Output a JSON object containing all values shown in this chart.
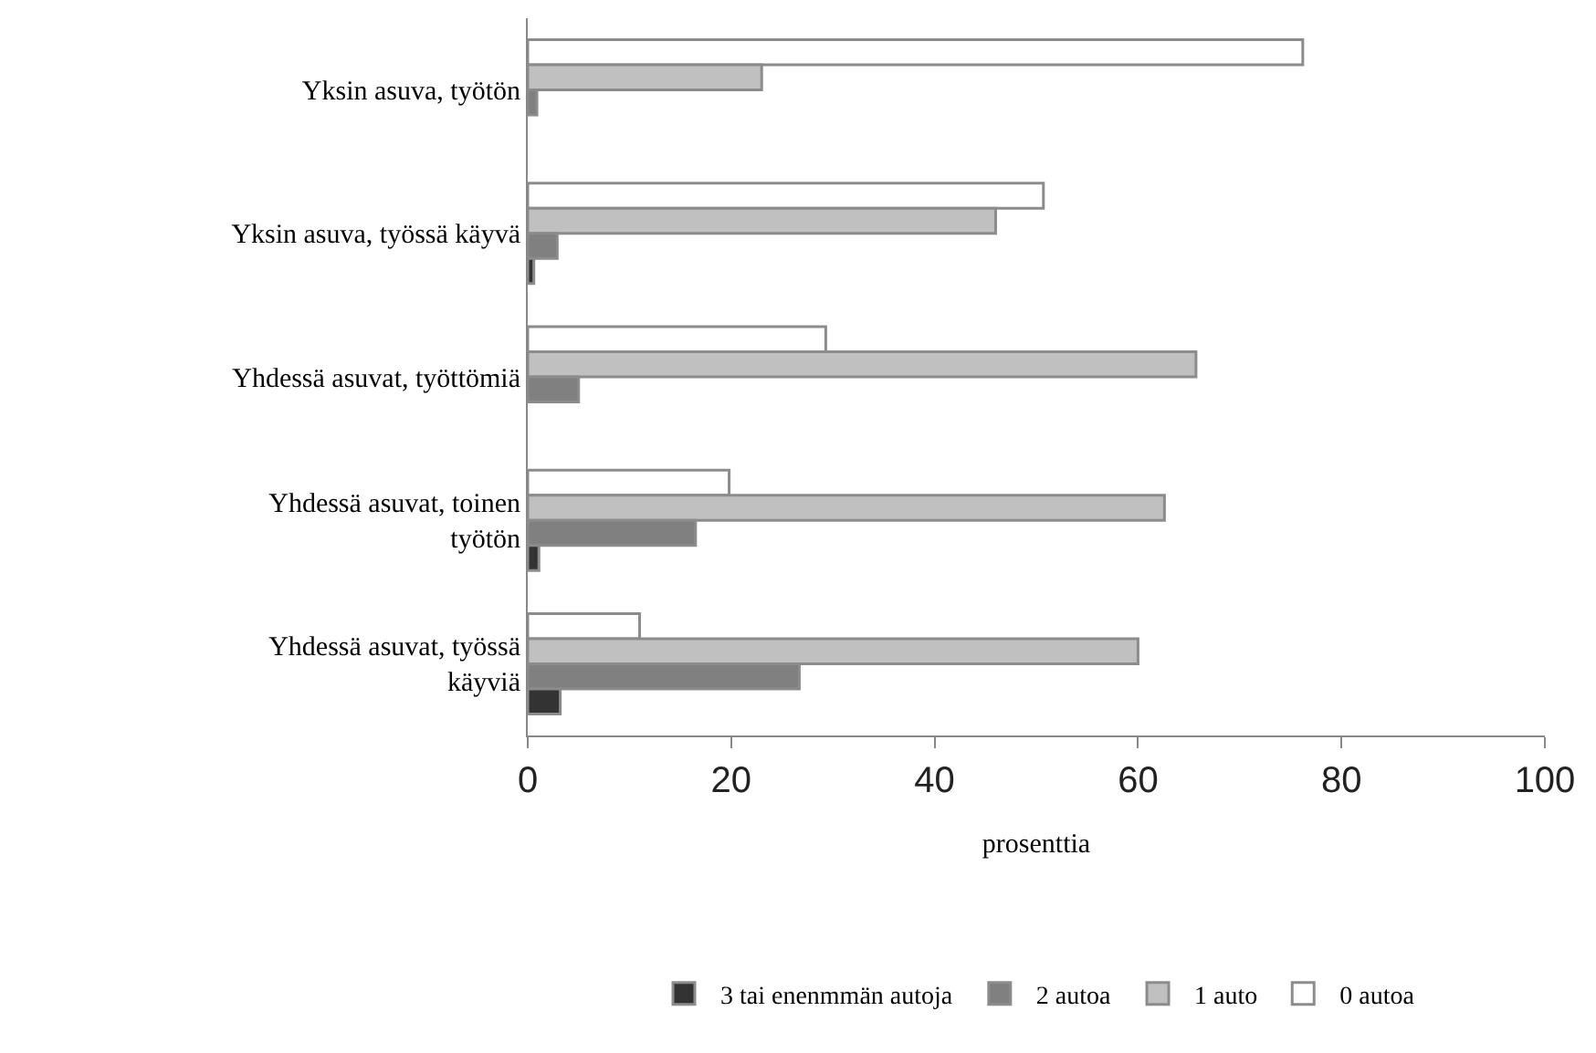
{
  "chart_data": {
    "type": "bar",
    "orientation": "horizontal",
    "xlabel": "prosenttia",
    "categories": [
      "Yksin asuva, työtön",
      "Yksin asuva, työssä käyvä",
      "Yhdessä asuvat, työttömiä",
      "Yhdessä asuvat, toinen työtön",
      "Yhdessä asuvat, työssä käyviä"
    ],
    "series": [
      {
        "name": "3 tai enenmmän autoja",
        "color": "#333333",
        "values": [
          null,
          0.6,
          null,
          1.1,
          3.2
        ]
      },
      {
        "name": "2 autoa",
        "color": "#808080",
        "values": [
          0.9,
          2.9,
          5,
          16.5,
          26.7
        ]
      },
      {
        "name": "1 auto",
        "color": "#c0c0c0",
        "values": [
          23,
          46,
          65.7,
          62.6,
          60
        ]
      },
      {
        "name": "0 autoa",
        "color": "#ffffff",
        "values": [
          76.2,
          50.7,
          29.3,
          19.8,
          11
        ]
      }
    ],
    "xlim": [
      0,
      100
    ],
    "xticks": [
      0,
      20,
      40,
      60,
      80,
      100
    ],
    "grid": false,
    "legend": "bottom"
  }
}
